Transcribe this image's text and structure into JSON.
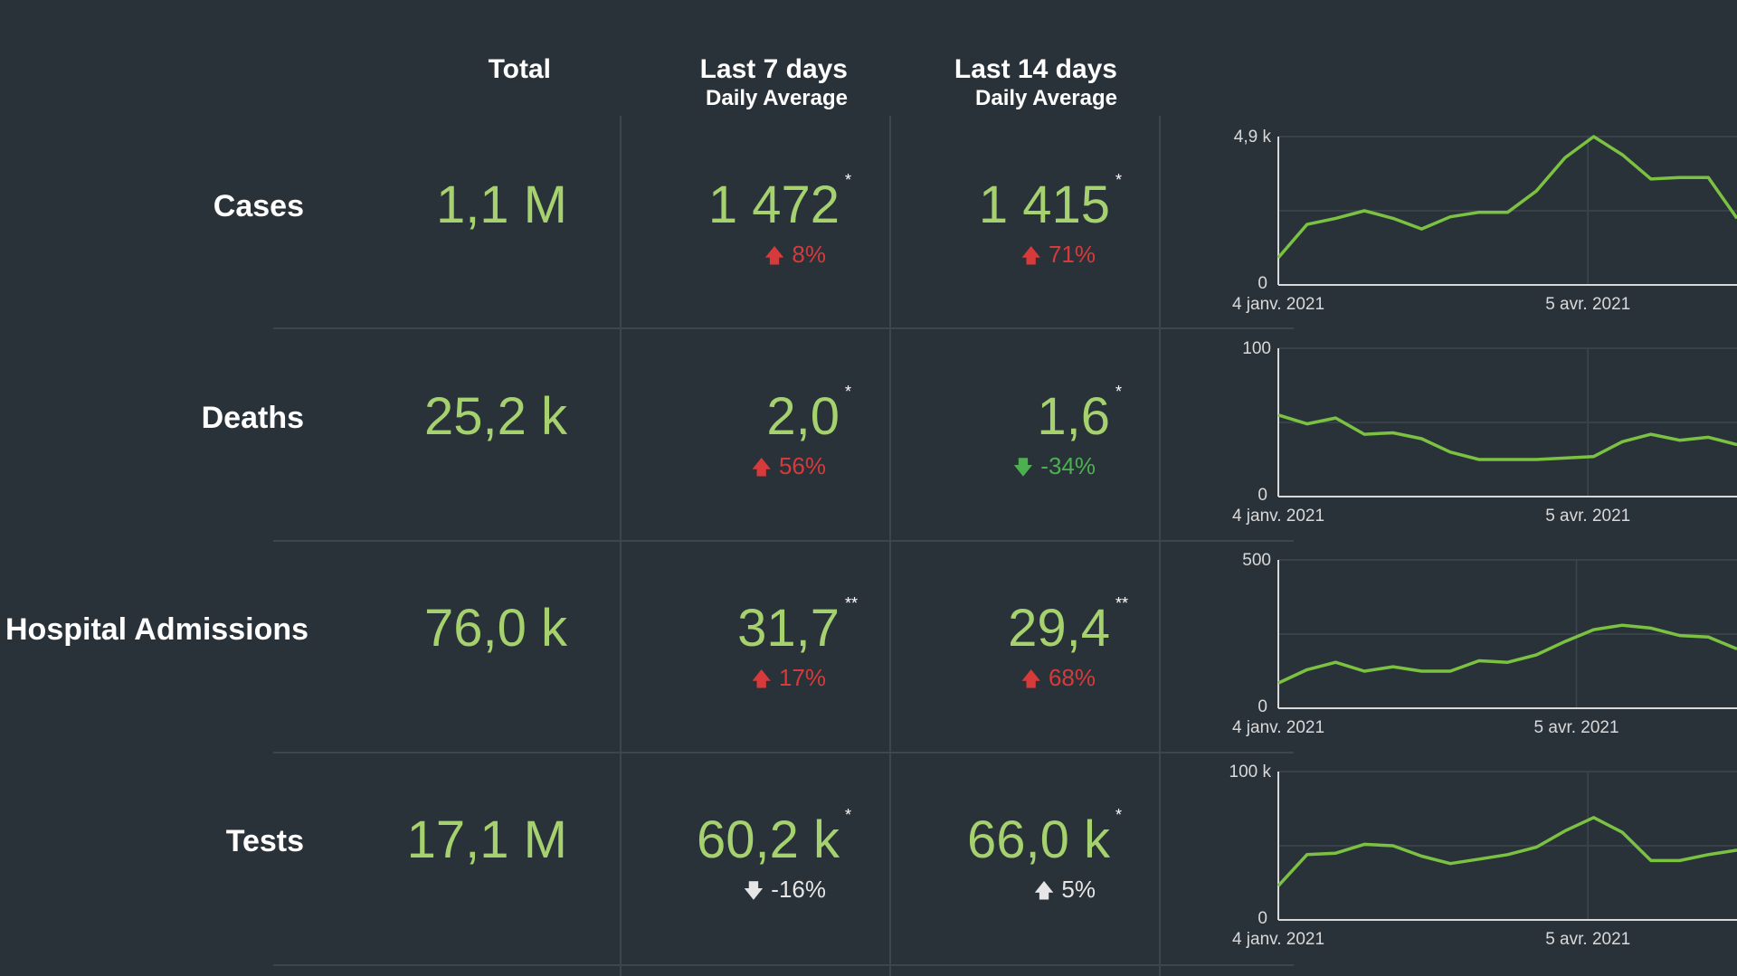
{
  "columns": {
    "total": "Total",
    "last7_title": "Last 7 days",
    "last7_sub": "Daily Average",
    "last14_title": "Last 14 days",
    "last14_sub": "Daily Average"
  },
  "rows": [
    {
      "label": "Cases",
      "total": "1,1 M",
      "last7": {
        "value": "1 472",
        "mark": "*",
        "change": "8%",
        "direction": "up",
        "tone": "bad"
      },
      "last14": {
        "value": "1 415",
        "mark": "*",
        "change": "71%",
        "direction": "up",
        "tone": "bad"
      },
      "chart": {
        "y_max_label": "4,9 k",
        "y_min_label": "0",
        "x_start_label": "4 janv. 2021",
        "x_mid_label": "5 avr. 2021",
        "ylim": [
          0,
          4900
        ],
        "values": [
          900,
          2000,
          2200,
          2450,
          2200,
          1850,
          2250,
          2400,
          2400,
          3100,
          4200,
          4900,
          4300,
          3500,
          3550,
          3550,
          2200
        ]
      }
    },
    {
      "label": "Deaths",
      "total": "25,2 k",
      "last7": {
        "value": "2,0",
        "mark": "*",
        "change": "56%",
        "direction": "up",
        "tone": "bad"
      },
      "last14": {
        "value": "1,6",
        "mark": "*",
        "change": "-34%",
        "direction": "down",
        "tone": "good"
      },
      "chart": {
        "y_max_label": "100",
        "y_min_label": "0",
        "x_start_label": "4 janv. 2021",
        "x_mid_label": "5 avr. 2021",
        "ylim": [
          0,
          100
        ],
        "values": [
          55,
          49,
          53,
          42,
          43,
          39,
          30,
          25,
          25,
          25,
          26,
          27,
          37,
          42,
          38,
          40,
          35
        ]
      }
    },
    {
      "label": "Hospital Admissions",
      "total": "76,0 k",
      "last7": {
        "value": "31,7",
        "mark": "**",
        "change": "17%",
        "direction": "up",
        "tone": "bad"
      },
      "last14": {
        "value": "29,4",
        "mark": "**",
        "change": "68%",
        "direction": "up",
        "tone": "bad"
      },
      "chart": {
        "y_max_label": "500",
        "y_min_label": "0",
        "x_start_label": "4 janv. 2021",
        "x_mid_label": "5 avr. 2021",
        "ylim": [
          0,
          500
        ],
        "values": [
          85,
          130,
          155,
          125,
          140,
          125,
          125,
          160,
          155,
          180,
          225,
          265,
          280,
          270,
          245,
          240,
          200
        ]
      }
    },
    {
      "label": "Tests",
      "total": "17,1 M",
      "last7": {
        "value": "60,2 k",
        "mark": "*",
        "change": "-16%",
        "direction": "down",
        "tone": "neutral"
      },
      "last14": {
        "value": "66,0 k",
        "mark": "*",
        "change": "5%",
        "direction": "up",
        "tone": "neutral"
      },
      "chart": {
        "y_max_label": "100 k",
        "y_min_label": "0",
        "x_start_label": "4 janv. 2021",
        "x_mid_label": "5 avr. 2021",
        "ylim": [
          0,
          100000
        ],
        "values": [
          23000,
          44000,
          45000,
          51000,
          50000,
          43000,
          38000,
          41000,
          44000,
          49000,
          60000,
          69000,
          59000,
          40000,
          40000,
          44000,
          47000
        ]
      }
    }
  ],
  "colors": {
    "bg": "#2a3239",
    "value_green": "#a5d16e",
    "line_green": "#7cc242",
    "up_bad": "#d63a3a",
    "down_good": "#4caf50",
    "neutral": "#e6e6e6"
  }
}
